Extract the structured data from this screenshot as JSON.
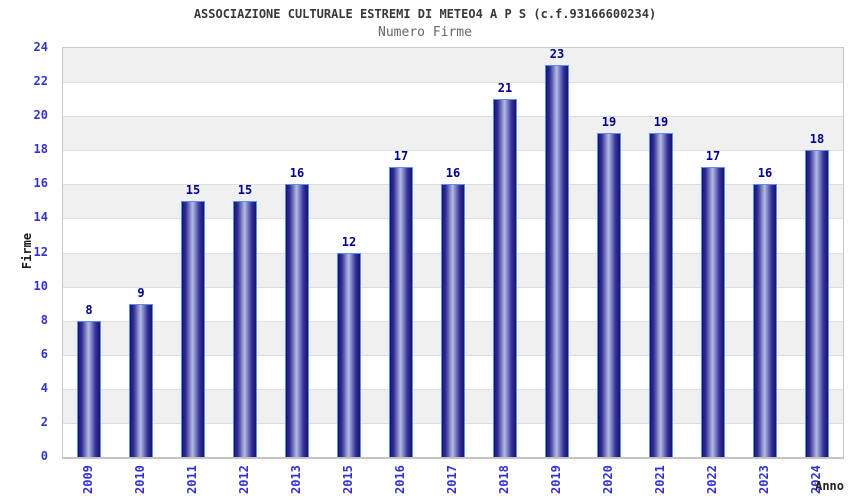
{
  "chart_data": {
    "type": "bar",
    "title": "ASSOCIAZIONE CULTURALE ESTREMI DI METEO4 A P S (c.f.93166600234)",
    "subtitle": "Numero Firme",
    "categories": [
      "2009",
      "2010",
      "2011",
      "2012",
      "2013",
      "2015",
      "2016",
      "2017",
      "2018",
      "2019",
      "2020",
      "2021",
      "2022",
      "2023",
      "2024"
    ],
    "values": [
      8,
      9,
      15,
      15,
      16,
      12,
      17,
      16,
      21,
      23,
      19,
      19,
      17,
      16,
      18
    ],
    "xlabel": "Anno",
    "ylabel": "Firme",
    "ylim": [
      0,
      24
    ],
    "ytick_step": 2,
    "yticks": [
      0,
      2,
      4,
      6,
      8,
      10,
      12,
      14,
      16,
      18,
      20,
      22,
      24
    ],
    "legend": null,
    "grid": "alternating horizontal bands every 2 units, gray band between odd gridline pairs (22-24 gray, 0-2 white)",
    "colors": {
      "bar_edge_dark": "#14146e",
      "bar_mid": "#32329b",
      "bar_center_light": "#b4bce0",
      "bar_border": "#5e8df2",
      "value_label": "#00008b",
      "tick_label": "#3333cc",
      "band_gray": "#f0f0f0",
      "band_white": "#ffffff",
      "title_color": "#383838",
      "subtitle_color": "#686868"
    }
  }
}
